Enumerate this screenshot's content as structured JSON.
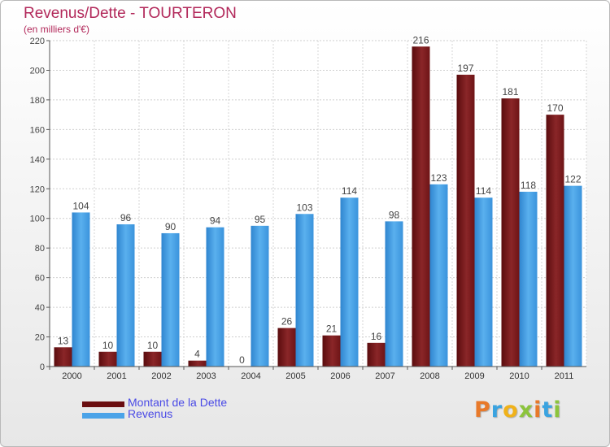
{
  "header": {
    "title": "Revenus/Dette - TOURTERON",
    "subtitle": "(en milliers d'€)"
  },
  "chart_data": {
    "type": "bar",
    "title": "Revenus/Dette - TOURTERON",
    "subtitle": "(en milliers d'€)",
    "categories": [
      "2000",
      "2001",
      "2002",
      "2003",
      "2004",
      "2005",
      "2006",
      "2007",
      "2008",
      "2009",
      "2010",
      "2011"
    ],
    "series": [
      {
        "name": "Montant de la Dette",
        "color": "#7a1a1c",
        "values": [
          13,
          10,
          10,
          4,
          0,
          26,
          21,
          16,
          216,
          197,
          181,
          170
        ]
      },
      {
        "name": "Revenus",
        "color": "#3b93dc",
        "values": [
          104,
          96,
          90,
          94,
          95,
          103,
          114,
          98,
          123,
          114,
          118,
          122
        ]
      }
    ],
    "ylim": [
      0,
      220
    ],
    "yticks": [
      0,
      20,
      40,
      60,
      80,
      100,
      120,
      140,
      160,
      180,
      200,
      220
    ],
    "grid": true,
    "legend": "bottom-left",
    "data_labels": true
  },
  "legend": {
    "items": [
      {
        "label": "Montant de la Dette",
        "color": "#6a0e10"
      },
      {
        "label": "Revenus",
        "color": "#4aa3e8"
      }
    ]
  },
  "logo": {
    "text": "Proxiti",
    "letter_colors": [
      "#e8792a",
      "#3aa3e0",
      "#f0b21a",
      "#8cc43c",
      "#e8792a",
      "#3aa3e0",
      "#8cc43c"
    ]
  }
}
